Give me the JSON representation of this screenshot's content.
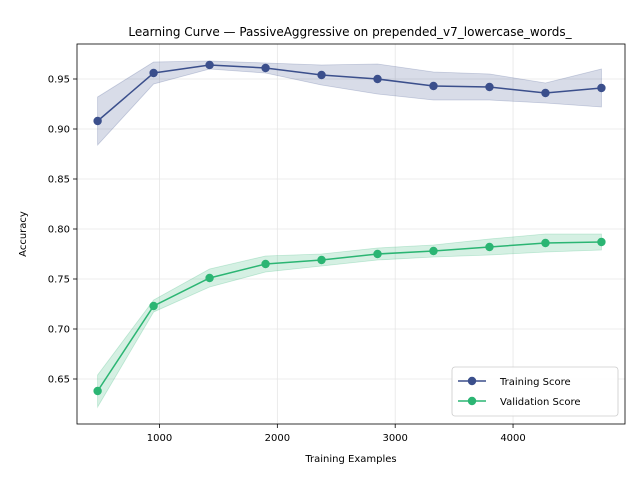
{
  "chart_data": {
    "type": "line",
    "title": "Learning Curve — PassiveAggressive on prepended_v7_lowercase_words_",
    "xlabel": "Training Examples",
    "ylabel": "Accuracy",
    "xlim": [
      300,
      4950
    ],
    "ylim": [
      0.605,
      0.985
    ],
    "xticks": [
      1000,
      2000,
      3000,
      4000
    ],
    "yticks": [
      0.65,
      0.7,
      0.75,
      0.8,
      0.85,
      0.9,
      0.95
    ],
    "ytick_labels": [
      "0.65",
      "0.70",
      "0.75",
      "0.80",
      "0.85",
      "0.90",
      "0.95"
    ],
    "grid": true,
    "legend_position": "lower-right",
    "x": [
      475,
      950,
      1425,
      1900,
      2375,
      2850,
      3325,
      3800,
      4275,
      4750
    ],
    "series": [
      {
        "name": "Training Score",
        "color": "#3b4f8c",
        "band_color": "#3b4f8c",
        "values": [
          0.908,
          0.956,
          0.964,
          0.961,
          0.954,
          0.95,
          0.943,
          0.942,
          0.936,
          0.941
        ],
        "std": [
          0.024,
          0.011,
          0.004,
          0.005,
          0.01,
          0.015,
          0.014,
          0.013,
          0.01,
          0.019
        ]
      },
      {
        "name": "Validation Score",
        "color": "#2bb573",
        "band_color": "#2bb573",
        "values": [
          0.638,
          0.723,
          0.751,
          0.765,
          0.769,
          0.775,
          0.778,
          0.782,
          0.786,
          0.787
        ],
        "std": [
          0.016,
          0.006,
          0.009,
          0.008,
          0.006,
          0.006,
          0.006,
          0.008,
          0.009,
          0.008
        ]
      }
    ]
  }
}
